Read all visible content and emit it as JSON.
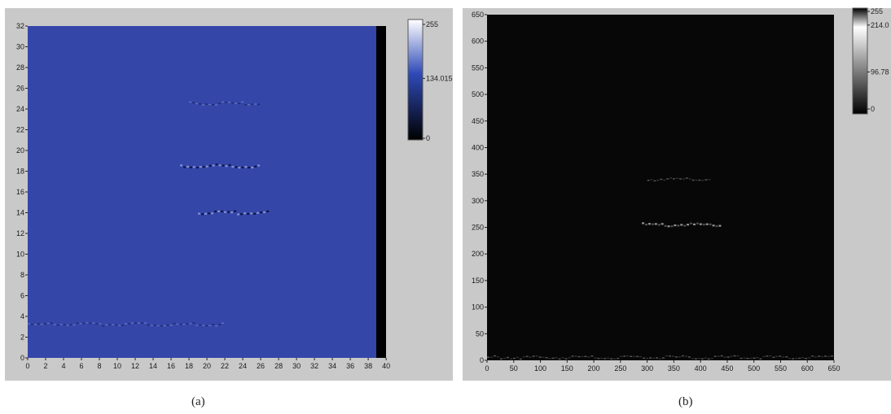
{
  "chart_data": [
    {
      "type": "heatmap",
      "panel_caption": "(a)",
      "x_ticks": [
        "0",
        "2",
        "4",
        "6",
        "8",
        "10",
        "12",
        "14",
        "16",
        "18",
        "20",
        "22",
        "24",
        "26",
        "28",
        "30",
        "32",
        "34",
        "36",
        "38",
        "40"
      ],
      "y_ticks": [
        "0",
        "2",
        "4",
        "6",
        "8",
        "10",
        "12",
        "14",
        "16",
        "18",
        "20",
        "22",
        "24",
        "26",
        "28",
        "30",
        "32"
      ],
      "xlim": [
        0,
        40
      ],
      "ylim": [
        0,
        32
      ],
      "colorbar": {
        "ticks": [
          "255",
          "134.015",
          "0"
        ],
        "values": [
          255,
          134.015,
          0
        ],
        "colors": [
          "#ffffff",
          "#2f4ab8",
          "#000000"
        ]
      },
      "background_value": 134,
      "colormap_colors": [
        "#3446a8",
        "#141a4a",
        "#000000"
      ],
      "features": [
        {
          "x_range": [
            18,
            26
          ],
          "y": 24.5,
          "intensity": "faint"
        },
        {
          "x_range": [
            17,
            26
          ],
          "y": 18.5,
          "intensity": "medium"
        },
        {
          "x_range": [
            19,
            27
          ],
          "y": 14,
          "intensity": "medium"
        },
        {
          "x_range": [
            0,
            22
          ],
          "y": 3.2,
          "intensity": "faint"
        }
      ]
    },
    {
      "type": "heatmap",
      "panel_caption": "(b)",
      "x_ticks": [
        "0",
        "50",
        "100",
        "150",
        "200",
        "250",
        "300",
        "350",
        "400",
        "450",
        "500",
        "550",
        "600",
        "650"
      ],
      "y_ticks": [
        "0",
        "50",
        "100",
        "150",
        "200",
        "250",
        "300",
        "350",
        "400",
        "450",
        "500",
        "550",
        "600",
        "650"
      ],
      "xlim": [
        0,
        650
      ],
      "ylim": [
        0,
        650
      ],
      "colorbar": {
        "ticks": [
          "255",
          "214.0",
          "96.78",
          "0"
        ],
        "values": [
          255,
          214.0,
          96.78,
          0
        ],
        "colors": [
          "#000000",
          "#ffffff",
          "#808080",
          "#000000"
        ]
      },
      "background_value": 0,
      "features": [
        {
          "x_range": [
            290,
            440
          ],
          "y": 255,
          "intensity": "medium"
        },
        {
          "x_range": [
            300,
            420
          ],
          "y": 340,
          "intensity": "faint"
        },
        {
          "x_range": [
            0,
            650
          ],
          "y": 5,
          "intensity": "faint"
        }
      ]
    }
  ]
}
